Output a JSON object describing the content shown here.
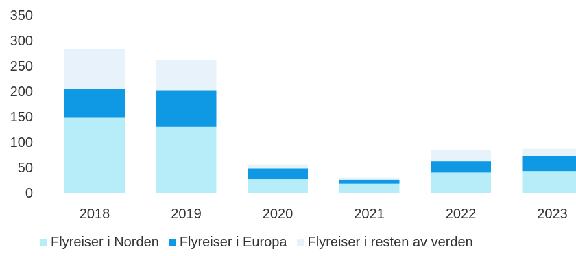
{
  "chart_data": {
    "type": "bar",
    "stacked": true,
    "categories": [
      "2018",
      "2019",
      "2020",
      "2021",
      "2022",
      "2023"
    ],
    "series": [
      {
        "name": "Flyreiser i Norden",
        "color": "#b7ecf9",
        "values": [
          148,
          130,
          27,
          18,
          40,
          43
        ]
      },
      {
        "name": "Flyreiser i Europa",
        "color": "#0f98e3",
        "values": [
          57,
          72,
          21,
          8,
          22,
          30
        ]
      },
      {
        "name": "Flyreiser i resten av verden",
        "color": "#e8f2fb",
        "values": [
          78,
          60,
          8,
          4,
          22,
          14
        ]
      }
    ],
    "yticks": [
      "0",
      "50",
      "100",
      "150",
      "200",
      "250",
      "300",
      "350"
    ],
    "ylim": [
      0,
      350
    ],
    "grid": false,
    "legend": "bottom"
  }
}
